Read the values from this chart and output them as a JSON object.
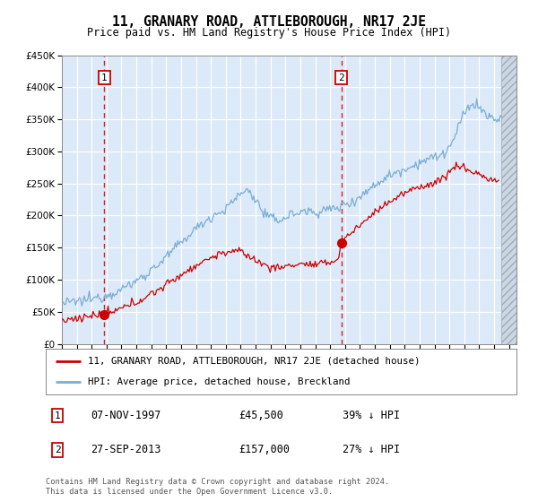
{
  "title": "11, GRANARY ROAD, ATTLEBOROUGH, NR17 2JE",
  "subtitle": "Price paid vs. HM Land Registry's House Price Index (HPI)",
  "legend_label_red": "11, GRANARY ROAD, ATTLEBOROUGH, NR17 2JE (detached house)",
  "legend_label_blue": "HPI: Average price, detached house, Breckland",
  "sale1_date": "07-NOV-1997",
  "sale1_price": "£45,500",
  "sale1_hpi": "39% ↓ HPI",
  "sale1_year": 1997.85,
  "sale1_value": 45500,
  "sale2_date": "27-SEP-2013",
  "sale2_price": "£157,000",
  "sale2_hpi": "27% ↓ HPI",
  "sale2_year": 2013.74,
  "sale2_value": 157000,
  "footer": "Contains HM Land Registry data © Crown copyright and database right 2024.\nThis data is licensed under the Open Government Licence v3.0.",
  "ylim": [
    0,
    450000
  ],
  "yticks": [
    0,
    50000,
    100000,
    150000,
    200000,
    250000,
    300000,
    350000,
    400000,
    450000
  ],
  "xlim_start": 1995.0,
  "xlim_end": 2025.5,
  "data_end": 2024.5,
  "bg_color": "#dce9f8",
  "red_color": "#cc0000",
  "blue_color": "#7aaed4"
}
